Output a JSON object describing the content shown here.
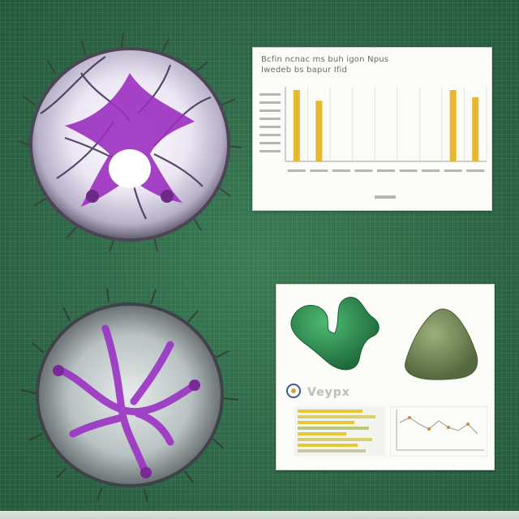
{
  "chart_panel": {
    "title_line1": "Bcfin  ncnac  ms buh  igon Npus",
    "title_line2": "Iwedeb bs bapur Ifid"
  },
  "chart_data": {
    "type": "bar",
    "categories": [
      "",
      "",
      "",
      "",
      "",
      "",
      "",
      "",
      ""
    ],
    "values": [
      1.0,
      0.85,
      0,
      0,
      0,
      0,
      0,
      1.0,
      0.9
    ],
    "xlabel": "",
    "ylabel": "",
    "grid": true
  },
  "photo_panel": {
    "caption": "Veypx"
  },
  "colors": {
    "board": "#2f6b47",
    "bar": "#e8b830",
    "purple": "#9b2fc0",
    "green_shape": "#2d8a50",
    "moss_shape": "#7f9460"
  }
}
